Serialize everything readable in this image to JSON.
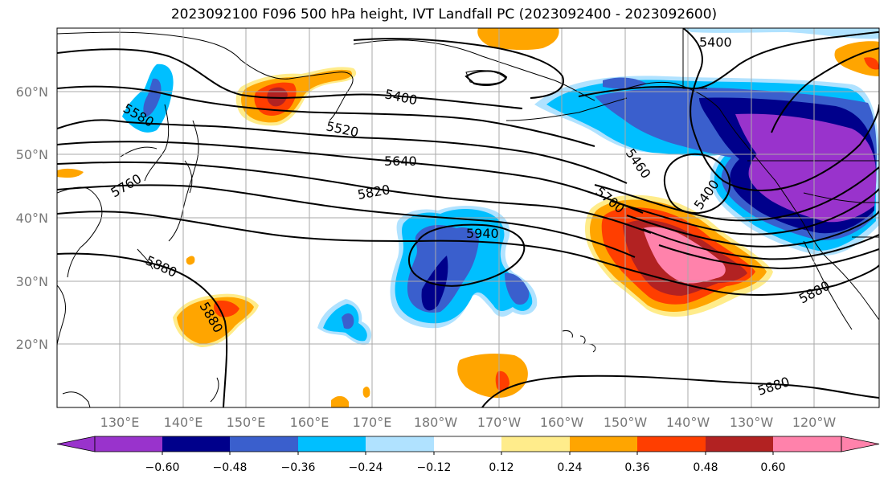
{
  "title": "2023092100 F096 500 hPa height, IVT Landfall PC (2023092400 - 2023092600)",
  "lon_ticks": [
    "130°E",
    "140°E",
    "150°E",
    "160°E",
    "170°E",
    "180°W",
    "170°W",
    "160°W",
    "150°W",
    "140°W",
    "130°W",
    "120°W"
  ],
  "lat_ticks": [
    "60°N",
    "50°N",
    "40°N",
    "30°N",
    "20°N"
  ],
  "contour_labels": [
    "5400",
    "5400",
    "5520",
    "5640",
    "5820",
    "5940",
    "5880",
    "5880",
    "5880",
    "5880",
    "5580",
    "5760",
    "5700",
    "5460",
    "5400"
  ],
  "colorbar": {
    "ticks": [
      "−0.60",
      "−0.48",
      "−0.36",
      "−0.24",
      "−0.12",
      "0.12",
      "0.24",
      "0.36",
      "0.48",
      "0.60"
    ],
    "colors": [
      "#9933cc",
      "#00008b",
      "#3a5fcd",
      "#00bfff",
      "#b0e2ff",
      "#ffffff",
      "#ffec8b",
      "#ffa500",
      "#ff3e00",
      "#b22222",
      "#ff82ab"
    ]
  },
  "colors": {
    "gridline": "#aaaaaa",
    "tick_label": "#777777"
  }
}
